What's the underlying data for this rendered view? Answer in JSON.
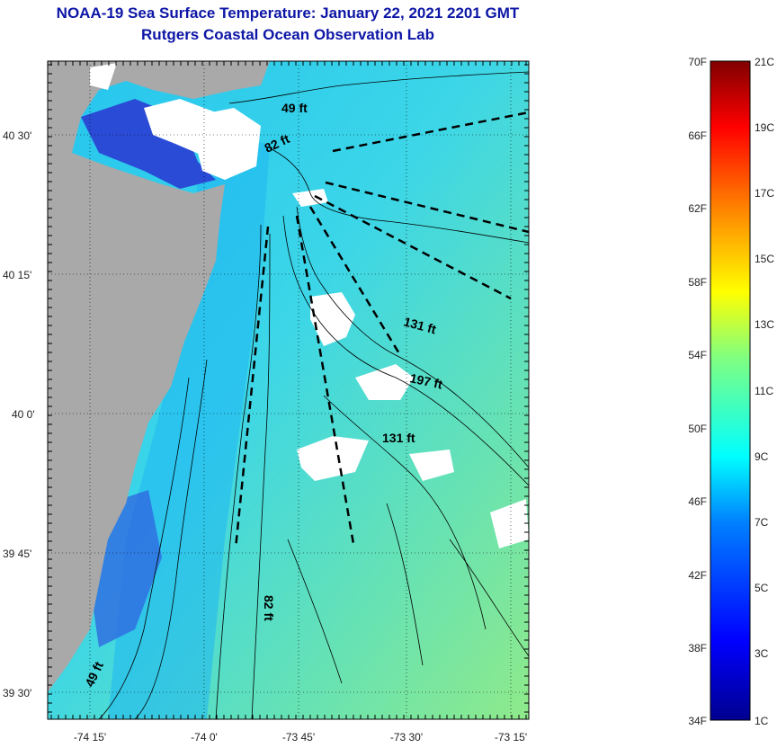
{
  "title": {
    "line1": "NOAA-19 Sea Surface Temperature:  January 22, 2021 2201 GMT",
    "line2": "Rutgers Coastal Ocean Observation Lab"
  },
  "map": {
    "lat_ticks": [
      "40 30'",
      "40 15'",
      "40 0'",
      "39 45'",
      "39 30'"
    ],
    "lon_ticks": [
      "-74 15'",
      "-74 0'",
      "-73 45'",
      "-73 30'",
      "-73 15'"
    ],
    "depth_labels": [
      "49 ft",
      "82 ft",
      "131 ft",
      "197 ft",
      "131 ft",
      "82 ft",
      "49 ft"
    ],
    "colors": {
      "land": "#a9a9a9",
      "cloud": "#ffffff",
      "water_warm": "#7fe59a",
      "water_cool": "#22c8f2"
    }
  },
  "colorbar": {
    "fahrenheit": [
      "70F",
      "66F",
      "62F",
      "58F",
      "54F",
      "50F",
      "46F",
      "42F",
      "38F",
      "34F"
    ],
    "celsius": [
      "21C",
      "19C",
      "17C",
      "15C",
      "13C",
      "11C",
      "9C",
      "7C",
      "5C",
      "3C",
      "1C"
    ],
    "gradient": [
      "#00008f",
      "#0000ff",
      "#0080ff",
      "#00ffff",
      "#80ff80",
      "#ffff00",
      "#ff8000",
      "#ff0000",
      "#800000"
    ]
  }
}
